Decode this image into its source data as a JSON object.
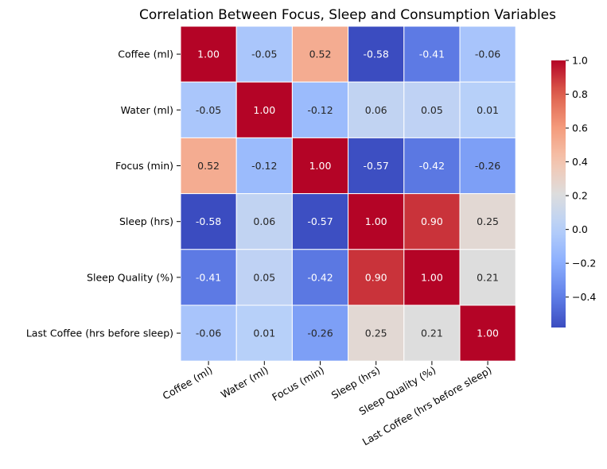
{
  "chart_data": {
    "type": "heatmap",
    "title": "Correlation Between Focus, Sleep and Consumption Variables",
    "xlabel": "",
    "ylabel": "",
    "rows": [
      "Coffee (ml)",
      "Water (ml)",
      "Focus (min)",
      "Sleep (hrs)",
      "Sleep Quality (%)",
      "Last Coffee (hrs before sleep)"
    ],
    "columns": [
      "Coffee (ml)",
      "Water (ml)",
      "Focus (min)",
      "Sleep (hrs)",
      "Sleep Quality (%)",
      "Last Coffee (hrs before sleep)"
    ],
    "values": [
      [
        1.0,
        -0.05,
        0.52,
        -0.58,
        -0.41,
        -0.06
      ],
      [
        -0.05,
        1.0,
        -0.12,
        0.06,
        0.05,
        0.01
      ],
      [
        0.52,
        -0.12,
        1.0,
        -0.57,
        -0.42,
        -0.26
      ],
      [
        -0.58,
        0.06,
        -0.57,
        1.0,
        0.9,
        0.25
      ],
      [
        -0.41,
        0.05,
        -0.42,
        0.9,
        1.0,
        0.21
      ],
      [
        -0.06,
        0.01,
        -0.26,
        0.25,
        0.21,
        1.0
      ]
    ],
    "colormap": "coolwarm",
    "vmin": -0.58,
    "vmax": 1.0,
    "annotation_format": "0.00",
    "colorbar": {
      "ticks": [
        -0.4,
        -0.2,
        0.0,
        0.2,
        0.4,
        0.6,
        0.8,
        1.0
      ],
      "tick_labels": [
        "−0.4",
        "−0.2",
        "0.0",
        "0.2",
        "0.4",
        "0.6",
        "0.8",
        "1.0"
      ],
      "placement": "right"
    },
    "grid": false
  }
}
